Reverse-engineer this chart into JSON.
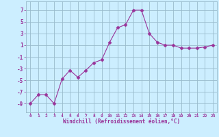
{
  "x": [
    0,
    1,
    2,
    3,
    4,
    5,
    6,
    7,
    8,
    9,
    10,
    11,
    12,
    13,
    14,
    15,
    16,
    17,
    18,
    19,
    20,
    21,
    22,
    23
  ],
  "y": [
    -9,
    -7.5,
    -7.5,
    -9,
    -4.8,
    -3.3,
    -4.5,
    -3.3,
    -2,
    -1.5,
    1.5,
    4,
    4.5,
    7,
    7,
    3,
    1.5,
    1,
    1,
    0.5,
    0.5,
    0.5,
    0.7,
    1
  ],
  "line_color": "#993399",
  "marker": "D",
  "marker_size": 2.5,
  "bg_color": "#cceeff",
  "grid_color": "#99bbcc",
  "xlabel": "Windchill (Refroidissement éolien,°C)",
  "xlabel_color": "#993399",
  "tick_color": "#993399",
  "yticks": [
    -9,
    -7,
    -5,
    -3,
    -1,
    1,
    3,
    5,
    7
  ],
  "xtick_labels": [
    "0",
    "1",
    "2",
    "3",
    "4",
    "5",
    "6",
    "7",
    "8",
    "9",
    "10",
    "11",
    "12",
    "13",
    "14",
    "15",
    "16",
    "17",
    "18",
    "19",
    "20",
    "21",
    "22",
    "23"
  ],
  "xlim": [
    -0.5,
    23.5
  ],
  "ylim": [
    -10.5,
    8.5
  ]
}
